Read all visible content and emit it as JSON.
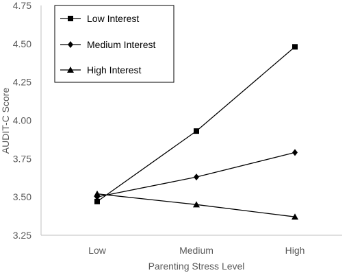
{
  "chart_data": {
    "type": "line",
    "categories": [
      "Low",
      "Medium",
      "High"
    ],
    "series": [
      {
        "name": "Low Interest",
        "marker": "square",
        "values": [
          3.47,
          3.93,
          4.48
        ]
      },
      {
        "name": "Medium Interest",
        "marker": "diamond",
        "values": [
          3.5,
          3.63,
          3.79
        ]
      },
      {
        "name": "High Interest",
        "marker": "triangle",
        "values": [
          3.52,
          3.45,
          3.37
        ]
      }
    ],
    "xlabel": "Parenting Stress Level",
    "ylabel": "AUDIT-C Score",
    "ylim": [
      3.25,
      4.75
    ],
    "yticks": [
      "3.25",
      "3.50",
      "3.75",
      "4.00",
      "4.25",
      "4.50",
      "4.75"
    ],
    "grid": false,
    "legend_position": "top-left",
    "colors": {
      "line": "#000000",
      "axis": "#bfbfbf",
      "text": "#595959"
    }
  }
}
